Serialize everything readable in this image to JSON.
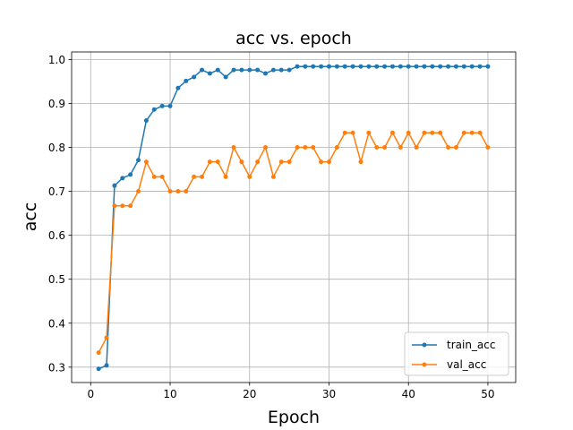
{
  "chart_data": {
    "type": "line",
    "title": "acc vs. epoch",
    "xlabel": "Epoch",
    "ylabel": "acc",
    "xlim": [
      -2.4,
      53.5
    ],
    "ylim": [
      0.265,
      1.017
    ],
    "xticks": [
      0,
      10,
      20,
      30,
      40,
      50
    ],
    "yticks": [
      0.3,
      0.4,
      0.5,
      0.6,
      0.7,
      0.8,
      0.9,
      1.0
    ],
    "ytick_labels": [
      "0.3",
      "0.4",
      "0.5",
      "0.6",
      "0.7",
      "0.8",
      "0.9",
      "1.0"
    ],
    "grid": true,
    "legend_position": "lower-right",
    "x": [
      1,
      2,
      3,
      4,
      5,
      6,
      7,
      8,
      9,
      10,
      11,
      12,
      13,
      14,
      15,
      16,
      17,
      18,
      19,
      20,
      21,
      22,
      23,
      24,
      25,
      26,
      27,
      28,
      29,
      30,
      31,
      32,
      33,
      34,
      35,
      36,
      37,
      38,
      39,
      40,
      41,
      42,
      43,
      44,
      45,
      46,
      47,
      48,
      49,
      50
    ],
    "series": [
      {
        "name": "train_acc",
        "color": "#1f77b4",
        "values": [
          0.296,
          0.304,
          0.713,
          0.73,
          0.738,
          0.771,
          0.861,
          0.886,
          0.894,
          0.894,
          0.935,
          0.951,
          0.96,
          0.976,
          0.968,
          0.976,
          0.96,
          0.976,
          0.976,
          0.976,
          0.976,
          0.968,
          0.976,
          0.976,
          0.976,
          0.984,
          0.984,
          0.984,
          0.984,
          0.984,
          0.984,
          0.984,
          0.984,
          0.984,
          0.984,
          0.984,
          0.984,
          0.984,
          0.984,
          0.984,
          0.984,
          0.984,
          0.984,
          0.984,
          0.984,
          0.984,
          0.984,
          0.984,
          0.984,
          0.984
        ]
      },
      {
        "name": "val_acc",
        "color": "#ff7f0e",
        "values": [
          0.333,
          0.367,
          0.667,
          0.667,
          0.667,
          0.7,
          0.767,
          0.733,
          0.733,
          0.7,
          0.7,
          0.7,
          0.733,
          0.733,
          0.767,
          0.767,
          0.733,
          0.8,
          0.767,
          0.733,
          0.767,
          0.8,
          0.733,
          0.767,
          0.767,
          0.8,
          0.8,
          0.8,
          0.767,
          0.767,
          0.8,
          0.833,
          0.833,
          0.767,
          0.833,
          0.8,
          0.8,
          0.833,
          0.8,
          0.833,
          0.8,
          0.833,
          0.833,
          0.833,
          0.8,
          0.8,
          0.833,
          0.833,
          0.833,
          0.8
        ]
      }
    ]
  }
}
